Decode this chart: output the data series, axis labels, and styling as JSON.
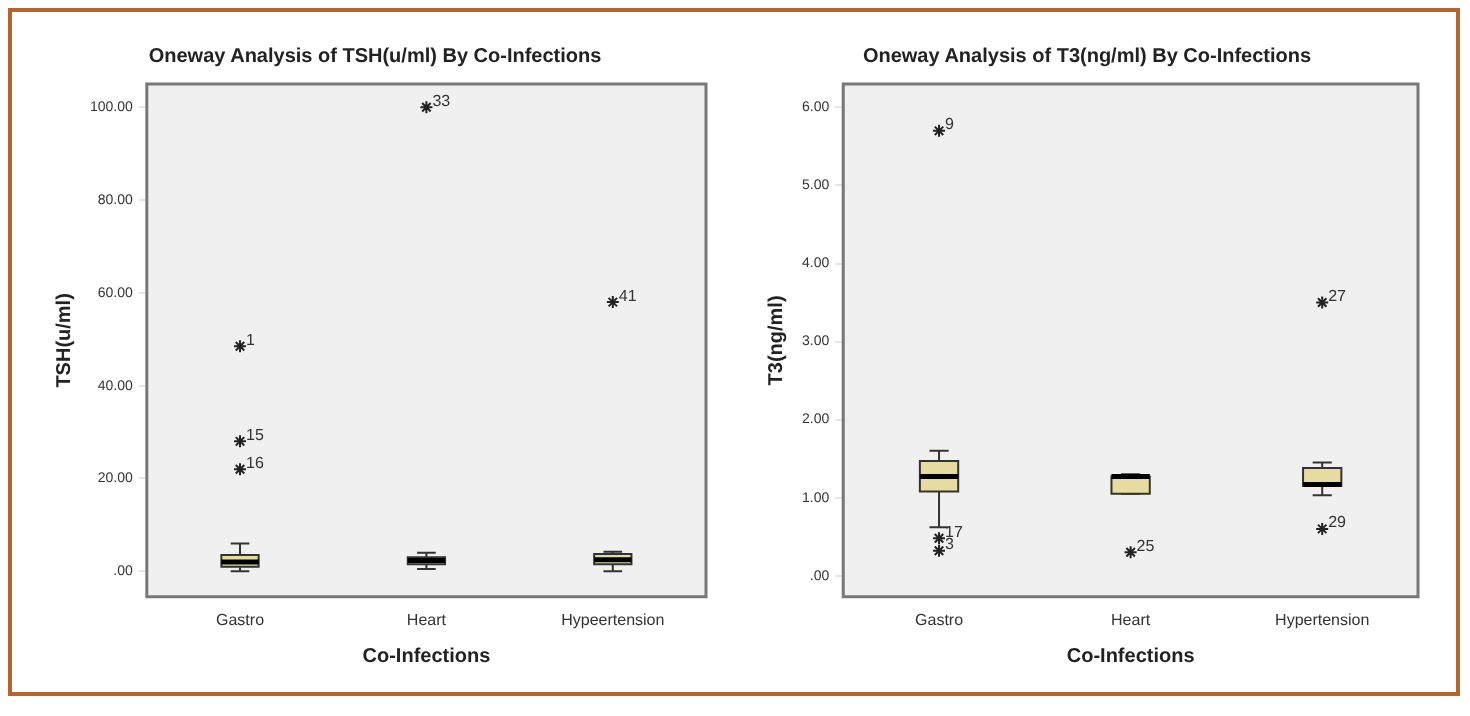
{
  "chart_data": [
    {
      "type": "box",
      "title": "Oneway Analysis of TSH(u/ml) By Co-Infections",
      "xlabel": "Co-Infections",
      "ylabel": "TSH(u/ml)",
      "categories": [
        "Gastro",
        "Heart",
        "Hypeertension"
      ],
      "color": "#e6dca0",
      "marker": "star",
      "grid": false,
      "legend": false,
      "boxes": [
        {
          "low": 0,
          "q1": 1,
          "median": 2,
          "q3": 3.5,
          "high": 6,
          "outliers": [
            48.5,
            28,
            22
          ]
        },
        {
          "low": 0.5,
          "q1": 1.5,
          "median": 2.3,
          "q3": 3,
          "high": 4,
          "outliers": [
            100
          ]
        },
        {
          "low": 0,
          "q1": 1.5,
          "median": 2.5,
          "q3": 3.7,
          "high": 4.2,
          "outliers": [
            58
          ]
        }
      ],
      "ylim": [
        -5.5,
        105
      ],
      "yticks": [
        {
          "value": 0,
          "label": ".00"
        },
        {
          "value": 20,
          "label": "20.00"
        },
        {
          "value": 40,
          "label": "40.00"
        },
        {
          "value": 60,
          "label": "60.00"
        },
        {
          "value": 80,
          "label": "80.00"
        },
        {
          "value": 100,
          "label": "100.00"
        }
      ],
      "annotations": [
        "1",
        "15",
        "16",
        "33",
        "41"
      ]
    },
    {
      "type": "box",
      "title": "Oneway Analysis of T3(ng/ml) By Co-Infections",
      "xlabel": "Co-Infections",
      "ylabel": "T3(ng/ml)",
      "categories": [
        "Gastro",
        "Heart",
        "Hypertension"
      ],
      "color": "#e6dca0",
      "marker": "star",
      "grid": false,
      "legend": false,
      "boxes": [
        {
          "low": 0.62,
          "q1": 1.08,
          "median": 1.27,
          "q3": 1.47,
          "high": 1.6,
          "outliers": [
            0.48,
            0.32,
            5.7
          ]
        },
        {
          "low": 1.05,
          "q1": 1.05,
          "median": 1.27,
          "q3": 1.27,
          "high": 1.3,
          "outliers": [
            0.3
          ]
        },
        {
          "low": 1.03,
          "q1": 1.15,
          "median": 1.17,
          "q3": 1.38,
          "high": 1.45,
          "outliers": [
            0.6,
            3.5
          ]
        }
      ],
      "ylim": [
        -0.27,
        6.3
      ],
      "yticks": [
        {
          "value": 0,
          "label": ".00"
        },
        {
          "value": 1,
          "label": "1.00"
        },
        {
          "value": 2,
          "label": "2.00"
        },
        {
          "value": 3,
          "label": "3.00"
        },
        {
          "value": 4,
          "label": "4.00"
        },
        {
          "value": 5,
          "label": "5.00"
        },
        {
          "value": 6,
          "label": "6.00"
        }
      ],
      "annotations": [
        "17",
        "3",
        "9",
        "25",
        "29",
        "27"
      ]
    }
  ]
}
